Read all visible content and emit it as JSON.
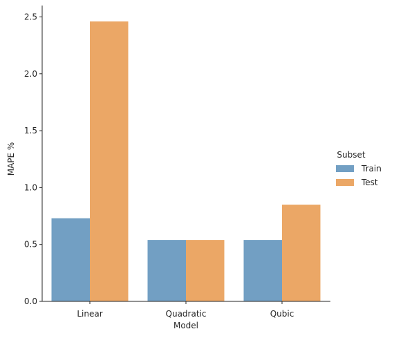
{
  "chart_data": {
    "type": "bar",
    "title": "",
    "xlabel": "Model",
    "ylabel": "MAPE %",
    "categories": [
      "Linear",
      "Quadratic",
      "Qubic"
    ],
    "series": [
      {
        "name": "Train",
        "color": "#729fc3",
        "values": [
          0.73,
          0.54,
          0.54
        ]
      },
      {
        "name": "Test",
        "color": "#eba766",
        "values": [
          2.46,
          0.54,
          0.85
        ]
      }
    ],
    "ylim": [
      0,
      2.6
    ],
    "yticks": [
      {
        "value": 0.0,
        "label": "0.0"
      },
      {
        "value": 0.5,
        "label": "0.5"
      },
      {
        "value": 1.0,
        "label": "1.0"
      },
      {
        "value": 1.5,
        "label": "1.5"
      },
      {
        "value": 2.0,
        "label": "2.0"
      },
      {
        "value": 2.5,
        "label": "2.5"
      }
    ],
    "legend": {
      "title": "Subset",
      "position": "right"
    },
    "grid": false
  }
}
